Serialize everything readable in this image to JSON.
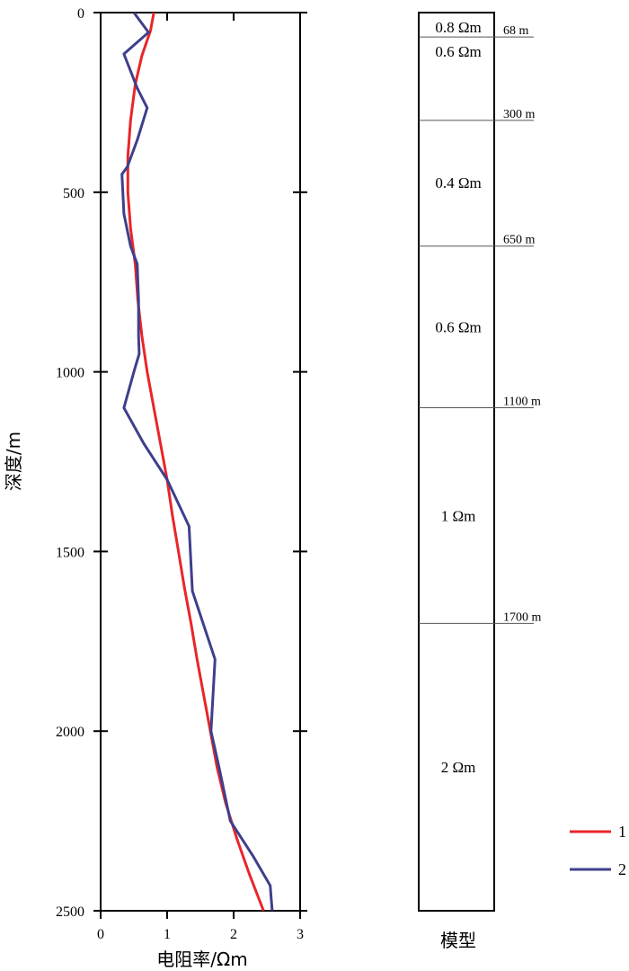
{
  "colors": {
    "series1": "#e8262a",
    "series2": "#3f3f8c",
    "axis": "#000000",
    "boundary": "#555555"
  },
  "chart_data": {
    "type": "line",
    "xlabel": "电阻率/Ωm",
    "ylabel": "深度/m",
    "xlim": [
      0,
      3
    ],
    "ylim": [
      0,
      2500
    ],
    "y_inverted": true,
    "x_ticks": [
      "0",
      "1",
      "2",
      "3"
    ],
    "y_ticks": [
      "0",
      "500",
      "1000",
      "1500",
      "2000",
      "2500"
    ],
    "grid": false,
    "legend_position": "bottom-right",
    "series": [
      {
        "name": "1",
        "points": [
          [
            0.8,
            0
          ],
          [
            0.75,
            50
          ],
          [
            0.62,
            120
          ],
          [
            0.52,
            200
          ],
          [
            0.45,
            300
          ],
          [
            0.41,
            400
          ],
          [
            0.41,
            500
          ],
          [
            0.45,
            600
          ],
          [
            0.52,
            700
          ],
          [
            0.56,
            800
          ],
          [
            0.62,
            900
          ],
          [
            0.7,
            1000
          ],
          [
            0.8,
            1100
          ],
          [
            0.9,
            1200
          ],
          [
            1.0,
            1300
          ],
          [
            1.08,
            1400
          ],
          [
            1.17,
            1500
          ],
          [
            1.26,
            1600
          ],
          [
            1.36,
            1700
          ],
          [
            1.45,
            1800
          ],
          [
            1.55,
            1900
          ],
          [
            1.65,
            2000
          ],
          [
            1.75,
            2100
          ],
          [
            1.88,
            2200
          ],
          [
            2.05,
            2300
          ],
          [
            2.24,
            2400
          ],
          [
            2.45,
            2500
          ]
        ]
      },
      {
        "name": "2",
        "points": [
          [
            0.5,
            0
          ],
          [
            0.72,
            55
          ],
          [
            0.35,
            115
          ],
          [
            0.55,
            210
          ],
          [
            0.7,
            265
          ],
          [
            0.55,
            355
          ],
          [
            0.4,
            430
          ],
          [
            0.32,
            450
          ],
          [
            0.35,
            560
          ],
          [
            0.45,
            650
          ],
          [
            0.55,
            700
          ],
          [
            0.57,
            800
          ],
          [
            0.57,
            900
          ],
          [
            0.58,
            950
          ],
          [
            0.5,
            1000
          ],
          [
            0.35,
            1100
          ],
          [
            0.65,
            1200
          ],
          [
            1.0,
            1300
          ],
          [
            1.33,
            1430
          ],
          [
            1.38,
            1610
          ],
          [
            1.72,
            1800
          ],
          [
            1.66,
            2000
          ],
          [
            1.78,
            2100
          ],
          [
            1.95,
            2250
          ],
          [
            2.3,
            2350
          ],
          [
            2.55,
            2430
          ],
          [
            2.58,
            2500
          ]
        ]
      }
    ]
  },
  "model": {
    "caption": "模型",
    "layers": [
      {
        "top": 0,
        "bottom": 68,
        "label": "0.8 Ωm"
      },
      {
        "top": 68,
        "bottom": 300,
        "label": "0.6 Ωm"
      },
      {
        "top": 300,
        "bottom": 650,
        "label": "0.4 Ωm"
      },
      {
        "top": 650,
        "bottom": 1100,
        "label": "0.6 Ωm"
      },
      {
        "top": 1100,
        "bottom": 1700,
        "label": "1 Ωm"
      },
      {
        "top": 1700,
        "bottom": 2500,
        "label": "2 Ωm"
      }
    ],
    "boundaries": [
      {
        "depth": 68,
        "label": "68 m"
      },
      {
        "depth": 300,
        "label": "300 m"
      },
      {
        "depth": 650,
        "label": "650 m"
      },
      {
        "depth": 1100,
        "label": "1100 m"
      },
      {
        "depth": 1700,
        "label": "1700 m"
      }
    ]
  },
  "legend": [
    {
      "label": "1",
      "color": "#e8262a"
    },
    {
      "label": "2",
      "color": "#3f3f8c"
    }
  ]
}
